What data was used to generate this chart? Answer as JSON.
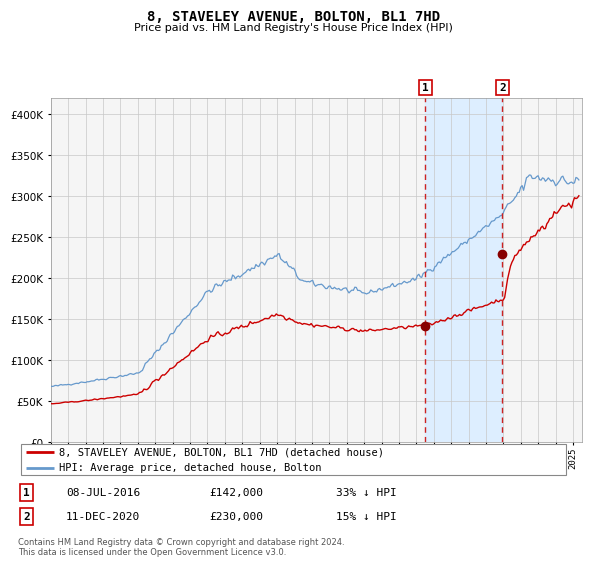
{
  "title": "8, STAVELEY AVENUE, BOLTON, BL1 7HD",
  "subtitle": "Price paid vs. HM Land Registry's House Price Index (HPI)",
  "legend_line1": "8, STAVELEY AVENUE, BOLTON, BL1 7HD (detached house)",
  "legend_line2": "HPI: Average price, detached house, Bolton",
  "transaction1_date": "08-JUL-2016",
  "transaction1_price": 142000,
  "transaction1_label": "33% ↓ HPI",
  "transaction2_date": "11-DEC-2020",
  "transaction2_price": 230000,
  "transaction2_label": "15% ↓ HPI",
  "footer": "Contains HM Land Registry data © Crown copyright and database right 2024.\nThis data is licensed under the Open Government Licence v3.0.",
  "hpi_color": "#6699cc",
  "price_color": "#cc0000",
  "marker_color": "#880000",
  "dashed_line_color": "#cc2222",
  "shade_color": "#ddeeff",
  "grid_color": "#c8c8c8",
  "bg_color": "#f0f0f0",
  "ylim": [
    0,
    420000
  ],
  "xlim_start": 1995.0,
  "xlim_end": 2025.5,
  "transaction1_year": 2016.52,
  "transaction2_year": 2020.94,
  "box_color": "#cc0000"
}
